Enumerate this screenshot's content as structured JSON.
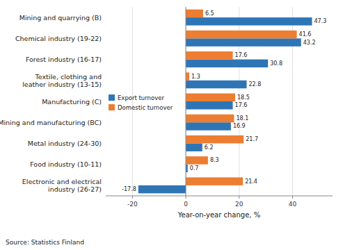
{
  "chart_data": {
    "type": "bar",
    "orientation": "horizontal",
    "categories": [
      "Electronic and electrical\nindustry (26-27)",
      "Food industry (10-11)",
      "Metal industry (24-30)",
      "Mining and manufacturing (BC)",
      "Manufacturing (C)",
      "Textile, clothing and\nleather industry (13-15)",
      "Forest industry (16-17)",
      "Chemical industry (19-22)",
      "Mining and quarrying (B)"
    ],
    "series": [
      {
        "name": "Export turnover",
        "color": "#2E75B6",
        "values": [
          -17.8,
          0.7,
          6.2,
          16.9,
          17.6,
          22.8,
          30.8,
          43.2,
          47.3
        ]
      },
      {
        "name": "Domestic turnover",
        "color": "#ED7D31",
        "values": [
          21.4,
          8.3,
          21.7,
          18.1,
          18.5,
          1.3,
          17.6,
          41.6,
          6.5
        ]
      }
    ],
    "x_label": "Year-on-year change, %",
    "source": "Source: Statistics Finland",
    "xlim": [
      -30,
      55
    ],
    "xticks": [
      -20,
      0,
      20,
      40
    ],
    "grid": true,
    "legend": "left",
    "data_labels": true
  }
}
